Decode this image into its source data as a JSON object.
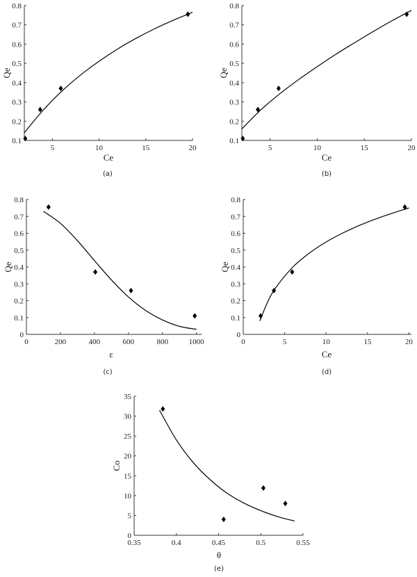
{
  "chart_data": [
    {
      "panel_label": "(a)",
      "type": "scatter",
      "xlabel": "Ce",
      "ylabel": "Qe",
      "xlim": [
        2,
        20
      ],
      "ylim": [
        0.1,
        0.8
      ],
      "xticks": [
        5,
        10,
        15,
        20
      ],
      "yticks": [
        0.1,
        0.2,
        0.3,
        0.4,
        0.5,
        0.6,
        0.7,
        0.8
      ],
      "points": {
        "x": [
          2.1,
          3.7,
          5.9,
          19.5
        ],
        "y": [
          0.11,
          0.26,
          0.37,
          0.755
        ]
      },
      "fit_curve": {
        "x": [
          2,
          4,
          6,
          8,
          10,
          12,
          14,
          16,
          18,
          20
        ],
        "y": [
          0.14,
          0.256,
          0.355,
          0.439,
          0.511,
          0.575,
          0.631,
          0.681,
          0.725,
          0.765
        ]
      },
      "marker": "diamond",
      "color": "#000000",
      "grid": false
    },
    {
      "panel_label": "(b)",
      "type": "scatter",
      "xlabel": "Ce",
      "ylabel": "Qe",
      "xlim": [
        2,
        20
      ],
      "ylim": [
        0.1,
        0.8
      ],
      "xticks": [
        5,
        10,
        15,
        20
      ],
      "yticks": [
        0.1,
        0.2,
        0.3,
        0.4,
        0.5,
        0.6,
        0.7,
        0.8
      ],
      "points": {
        "x": [
          2.1,
          3.7,
          5.9,
          19.5
        ],
        "y": [
          0.11,
          0.26,
          0.37,
          0.755
        ]
      },
      "fit_curve": {
        "x": [
          2,
          4,
          6,
          8,
          10,
          12,
          14,
          16,
          18,
          20
        ],
        "y": [
          0.16,
          0.258,
          0.341,
          0.415,
          0.483,
          0.548,
          0.608,
          0.667,
          0.723,
          0.775
        ]
      },
      "marker": "diamond",
      "color": "#000000",
      "grid": false
    },
    {
      "panel_label": "(c)",
      "type": "scatter",
      "xlabel": "ε",
      "ylabel": "Qe",
      "xlim": [
        0,
        1030
      ],
      "ylim": [
        0,
        0.8
      ],
      "xticks": [
        0,
        200,
        400,
        600,
        800,
        1000
      ],
      "yticks": [
        0,
        0.1,
        0.2,
        0.3,
        0.4,
        0.5,
        0.6,
        0.7,
        0.8
      ],
      "points": {
        "x": [
          130,
          405,
          615,
          990
        ],
        "y": [
          0.755,
          0.37,
          0.26,
          0.11
        ]
      },
      "fit_curve": {
        "x": [
          100,
          200,
          300,
          400,
          500,
          600,
          700,
          800,
          900,
          1000
        ],
        "y": [
          0.73,
          0.659,
          0.556,
          0.438,
          0.323,
          0.222,
          0.143,
          0.086,
          0.048,
          0.03
        ]
      },
      "marker": "diamond",
      "color": "#000000",
      "grid": false
    },
    {
      "panel_label": "(d)",
      "type": "scatter",
      "xlabel": "Ce",
      "ylabel": "Qe",
      "xlim": [
        0,
        20.3
      ],
      "ylim": [
        0,
        0.8
      ],
      "xticks": [
        0,
        5,
        10,
        15,
        20
      ],
      "yticks": [
        0,
        0.1,
        0.2,
        0.3,
        0.4,
        0.5,
        0.6,
        0.7,
        0.8
      ],
      "points": {
        "x": [
          2.1,
          3.7,
          5.9,
          19.5
        ],
        "y": [
          0.11,
          0.26,
          0.37,
          0.755
        ]
      },
      "fit_curve": {
        "x": [
          2,
          3,
          4,
          6,
          8,
          10,
          12,
          14,
          16,
          18,
          20
        ],
        "y": [
          0.08,
          0.198,
          0.282,
          0.4,
          0.483,
          0.548,
          0.601,
          0.646,
          0.685,
          0.719,
          0.75
        ]
      },
      "marker": "diamond",
      "color": "#000000",
      "grid": false
    },
    {
      "panel_label": "(e)",
      "type": "scatter",
      "xlabel": "θ",
      "ylabel": "Co",
      "xlim": [
        0.35,
        0.55
      ],
      "ylim": [
        0,
        35
      ],
      "xticks": [
        0.35,
        0.4,
        0.45,
        0.5,
        0.55
      ],
      "yticks": [
        0,
        5,
        10,
        15,
        20,
        25,
        30,
        35
      ],
      "points": {
        "x": [
          0.384,
          0.456,
          0.503,
          0.529
        ],
        "y": [
          31.8,
          4,
          11.9,
          8
        ]
      },
      "fit_curve": {
        "x": [
          0.38,
          0.4,
          0.42,
          0.44,
          0.46,
          0.48,
          0.5,
          0.52,
          0.54
        ],
        "y": [
          31.5,
          24.0,
          18.3,
          14.0,
          10.6,
          8.1,
          6.2,
          4.7,
          3.6
        ]
      },
      "marker": "diamond",
      "color": "#000000",
      "grid": false
    }
  ]
}
